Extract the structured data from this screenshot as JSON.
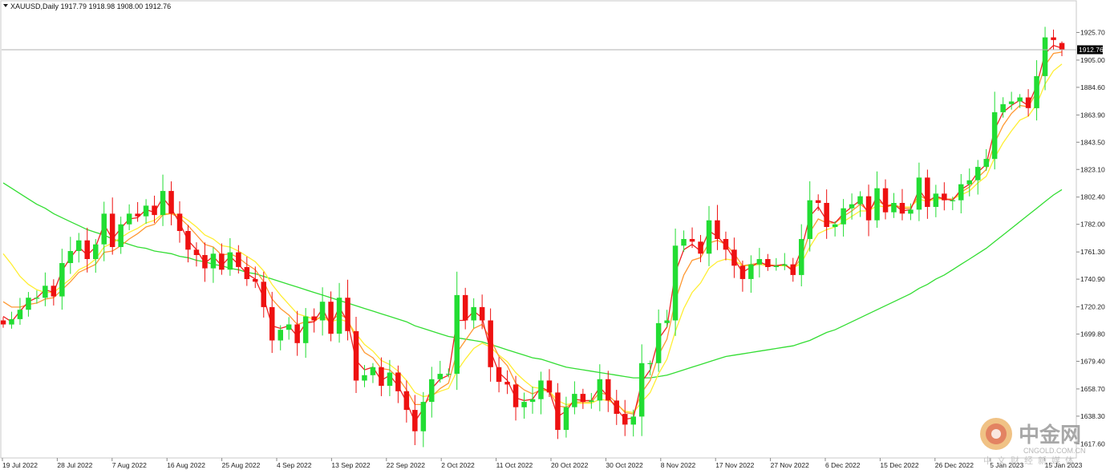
{
  "header": {
    "menu_icon": "triangle-down-icon",
    "title": "XAUUSD,Daily 1917.79 1918.98 1908.00 1912.76"
  },
  "current_price_label": "1912.76",
  "watermark": {
    "logo_icon": "cngold-logo-icon",
    "name_cn": "中金网",
    "domain": "CNGOLD.COM.CN",
    "tagline_cn": "中文财经新媒体"
  },
  "chart_data": {
    "type": "candlestick",
    "symbol": "XAUUSD",
    "timeframe": "Daily",
    "ohlc_readout": {
      "open": 1917.79,
      "high": 1918.98,
      "low": 1908.0,
      "close": 1912.76
    },
    "ylim": [
      1610,
      1938
    ],
    "y_ticks": [
      "1925.70",
      "1905.00",
      "1884.60",
      "1863.90",
      "1843.50",
      "1823.10",
      "1802.40",
      "1782.00",
      "1761.30",
      "1740.90",
      "1720.20",
      "1699.80",
      "1679.40",
      "1658.70",
      "1638.30",
      "1617.60"
    ],
    "x_ticks": [
      "19 Jul 2022",
      "28 Jul 2022",
      "7 Aug 2022",
      "16 Aug 2022",
      "25 Aug 2022",
      "4 Sep 2022",
      "13 Sep 2022",
      "22 Sep 2022",
      "2 Oct 2022",
      "11 Oct 2022",
      "20 Oct 2022",
      "30 Oct 2022",
      "8 Nov 2022",
      "17 Nov 2022",
      "27 Nov 2022",
      "6 Dec 2022",
      "15 Dec 2022",
      "26 Dec 2022",
      "5 Jan 2023",
      "15 Jan 2023"
    ],
    "colors": {
      "up": "#22dd33",
      "down": "#ee1111",
      "ma_fast": "#ee2222",
      "ma_mid": "#ff9933",
      "ma_slow": "#ffee33",
      "ma_long": "#33dd33"
    },
    "closes": [
      1707,
      1711,
      1718,
      1727,
      1727,
      1736,
      1728,
      1753,
      1762,
      1770,
      1756,
      1767,
      1790,
      1765,
      1782,
      1790,
      1788,
      1796,
      1789,
      1807,
      1790,
      1777,
      1763,
      1759,
      1749,
      1760,
      1748,
      1761,
      1750,
      1741,
      1739,
      1720,
      1695,
      1703,
      1707,
      1693,
      1713,
      1710,
      1724,
      1700,
      1727,
      1702,
      1665,
      1669,
      1675,
      1661,
      1671,
      1657,
      1643,
      1627,
      1649,
      1666,
      1670,
      1670,
      1729,
      1710,
      1720,
      1710,
      1675,
      1664,
      1662,
      1645,
      1649,
      1651,
      1665,
      1656,
      1628,
      1645,
      1655,
      1649,
      1650,
      1666,
      1650,
      1640,
      1632,
      1638,
      1678,
      1678,
      1708,
      1710,
      1766,
      1771,
      1769,
      1760,
      1785,
      1771,
      1763,
      1751,
      1741,
      1752,
      1756,
      1750,
      1751,
      1752,
      1744,
      1771,
      1800,
      1798,
      1780,
      1782,
      1794,
      1797,
      1803,
      1785,
      1809,
      1791,
      1798,
      1790,
      1793,
      1817,
      1795,
      1805,
      1800,
      1800,
      1812,
      1815,
      1825,
      1831,
      1866,
      1872,
      1874,
      1877,
      1869,
      1893,
      1922,
      1920,
      1913
    ],
    "ma_fast": [
      1713,
      1709,
      1717,
      1724,
      1727,
      1733,
      1731,
      1747,
      1757,
      1765,
      1759,
      1765,
      1782,
      1771,
      1779,
      1786,
      1787,
      1793,
      1791,
      1802,
      1794,
      1783,
      1770,
      1763,
      1753,
      1758,
      1751,
      1758,
      1752,
      1745,
      1741,
      1727,
      1706,
      1704,
      1706,
      1698,
      1708,
      1709,
      1719,
      1706,
      1720,
      1709,
      1680,
      1673,
      1675,
      1665,
      1669,
      1661,
      1649,
      1634,
      1644,
      1659,
      1666,
      1669,
      1710,
      1710,
      1717,
      1712,
      1687,
      1671,
      1665,
      1652,
      1650,
      1651,
      1660,
      1657,
      1638,
      1642,
      1651,
      1650,
      1650,
      1660,
      1653,
      1644,
      1636,
      1637,
      1664,
      1673,
      1696,
      1705,
      1746,
      1763,
      1767,
      1762,
      1777,
      1773,
      1766,
      1756,
      1746,
      1750,
      1754,
      1751,
      1751,
      1752,
      1747,
      1763,
      1788,
      1795,
      1785,
      1783,
      1790,
      1795,
      1800,
      1790,
      1803,
      1795,
      1797,
      1792,
      1793,
      1808,
      1799,
      1803,
      1801,
      1800,
      1808,
      1812,
      1821,
      1827,
      1853,
      1866,
      1871,
      1875,
      1871,
      1886,
      1910,
      1916,
      1914
    ],
    "ma_mid": [
      1724,
      1720,
      1720,
      1722,
      1723,
      1726,
      1727,
      1733,
      1739,
      1746,
      1749,
      1752,
      1761,
      1762,
      1766,
      1771,
      1775,
      1780,
      1782,
      1789,
      1790,
      1787,
      1781,
      1774,
      1767,
      1765,
      1759,
      1760,
      1757,
      1752,
      1748,
      1739,
      1726,
      1719,
      1714,
      1707,
      1709,
      1709,
      1714,
      1709,
      1715,
      1711,
      1696,
      1686,
      1682,
      1674,
      1673,
      1667,
      1658,
      1647,
      1647,
      1653,
      1659,
      1663,
      1686,
      1695,
      1704,
      1707,
      1696,
      1683,
      1676,
      1663,
      1658,
      1655,
      1658,
      1657,
      1646,
      1645,
      1649,
      1649,
      1649,
      1656,
      1654,
      1648,
      1641,
      1640,
      1656,
      1665,
      1684,
      1696,
      1725,
      1744,
      1755,
      1757,
      1768,
      1770,
      1767,
      1760,
      1751,
      1752,
      1753,
      1752,
      1751,
      1752,
      1748,
      1757,
      1776,
      1786,
      1783,
      1783,
      1788,
      1792,
      1797,
      1792,
      1800,
      1796,
      1797,
      1794,
      1794,
      1804,
      1800,
      1802,
      1801,
      1801,
      1806,
      1810,
      1817,
      1823,
      1843,
      1856,
      1865,
      1871,
      1870,
      1881,
      1901,
      1910,
      1911
    ],
    "ma_slow": [
      1760,
      1752,
      1743,
      1737,
      1733,
      1731,
      1731,
      1736,
      1741,
      1748,
      1751,
      1756,
      1765,
      1768,
      1772,
      1776,
      1779,
      1783,
      1785,
      1790,
      1790,
      1789,
      1785,
      1780,
      1774,
      1771,
      1766,
      1765,
      1762,
      1758,
      1754,
      1747,
      1737,
      1729,
      1722,
      1715,
      1713,
      1711,
      1712,
      1709,
      1711,
      1709,
      1700,
      1692,
      1687,
      1680,
      1677,
      1672,
      1665,
      1656,
      1653,
      1654,
      1657,
      1659,
      1672,
      1681,
      1689,
      1693,
      1690,
      1684,
      1679,
      1671,
      1665,
      1660,
      1659,
      1657,
      1650,
      1647,
      1648,
      1648,
      1648,
      1651,
      1650,
      1647,
      1642,
      1641,
      1649,
      1656,
      1670,
      1681,
      1702,
      1719,
      1731,
      1738,
      1749,
      1754,
      1756,
      1755,
      1751,
      1751,
      1752,
      1751,
      1751,
      1751,
      1749,
      1753,
      1765,
      1775,
      1778,
      1780,
      1784,
      1788,
      1792,
      1792,
      1796,
      1795,
      1796,
      1795,
      1795,
      1801,
      1799,
      1801,
      1801,
      1801,
      1804,
      1807,
      1813,
      1818,
      1832,
      1843,
      1852,
      1860,
      1863,
      1872,
      1887,
      1897,
      1902
    ],
    "ma_long": [
      1813,
      1809,
      1805,
      1801,
      1797,
      1794,
      1790,
      1787,
      1784,
      1781,
      1778,
      1776,
      1774,
      1771,
      1769,
      1767,
      1765,
      1764,
      1762,
      1761,
      1760,
      1758,
      1757,
      1755,
      1754,
      1752,
      1751,
      1749,
      1748,
      1746,
      1745,
      1743,
      1741,
      1739,
      1737,
      1735,
      1733,
      1731,
      1729,
      1727,
      1725,
      1723,
      1721,
      1719,
      1717,
      1715,
      1713,
      1711,
      1709,
      1706,
      1704,
      1702,
      1700,
      1698,
      1697,
      1696,
      1695,
      1694,
      1692,
      1690,
      1688,
      1686,
      1684,
      1682,
      1681,
      1679,
      1677,
      1675,
      1674,
      1673,
      1672,
      1671,
      1670,
      1669,
      1668,
      1667,
      1667,
      1667,
      1668,
      1669,
      1671,
      1673,
      1675,
      1677,
      1679,
      1681,
      1683,
      1684,
      1685,
      1686,
      1687,
      1688,
      1689,
      1690,
      1691,
      1693,
      1695,
      1698,
      1701,
      1703,
      1706,
      1709,
      1712,
      1715,
      1718,
      1721,
      1724,
      1727,
      1730,
      1734,
      1737,
      1741,
      1744,
      1748,
      1752,
      1756,
      1760,
      1764,
      1769,
      1774,
      1779,
      1784,
      1789,
      1794,
      1799,
      1804,
      1808
    ]
  }
}
